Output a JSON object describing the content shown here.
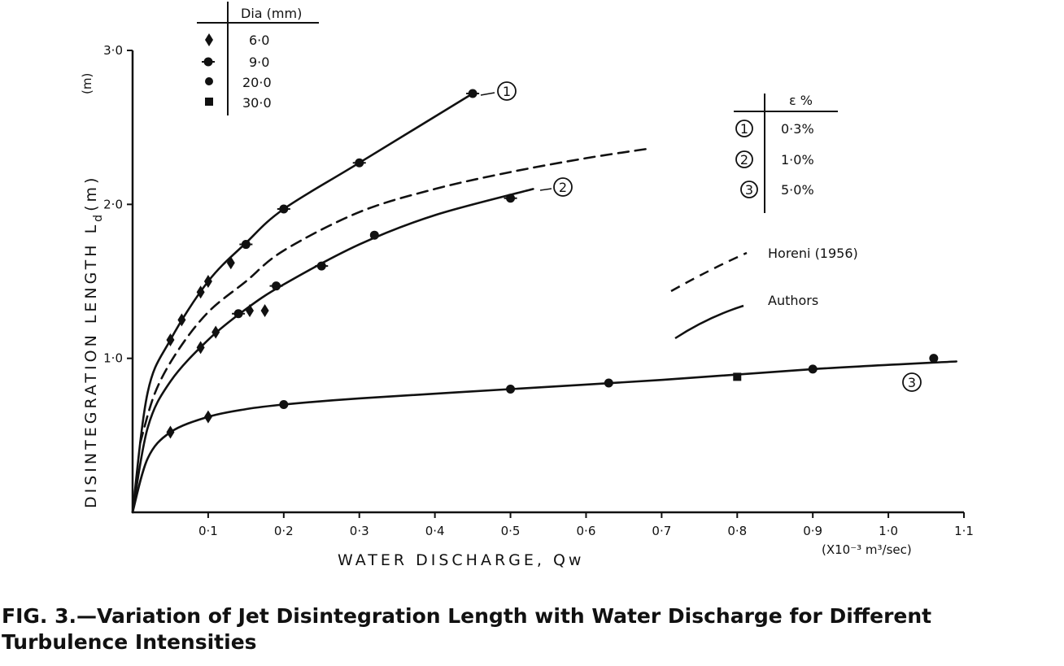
{
  "chart_data": {
    "type": "scatter",
    "xlabel": "WATER DISCHARGE, Qw",
    "x_unit": "(X10⁻³ m³/sec)",
    "ylabel": "DISINTEGRATION LENGTH L",
    "ylabel_subscript": "d",
    "ylabel_unit": "(m)",
    "y_axis_unit_top": "(m)",
    "xlim": [
      0,
      1.1
    ],
    "ylim": [
      0,
      3.0
    ],
    "x_ticks": [
      {
        "value": 0.1,
        "label": "0·1"
      },
      {
        "value": 0.2,
        "label": "0·2"
      },
      {
        "value": 0.3,
        "label": "0·3"
      },
      {
        "value": 0.4,
        "label": "0·4"
      },
      {
        "value": 0.5,
        "label": "0·5"
      },
      {
        "value": 0.6,
        "label": "0·6"
      },
      {
        "value": 0.7,
        "label": "0·7"
      },
      {
        "value": 0.8,
        "label": "0·8"
      },
      {
        "value": 0.9,
        "label": "0·9"
      },
      {
        "value": 1.0,
        "label": "1·0"
      },
      {
        "value": 1.1,
        "label": "1·1"
      }
    ],
    "y_ticks": [
      {
        "value": 1.0,
        "label": "1·0"
      },
      {
        "value": 2.0,
        "label": "2·0"
      },
      {
        "value": 3.0,
        "label": "3·0"
      }
    ],
    "dia_legend": {
      "header": "Dia (mm)",
      "entries": [
        {
          "label": "6·0",
          "marker": "diamond"
        },
        {
          "label": "9·0",
          "marker": "ticked-circle"
        },
        {
          "label": "20·0",
          "marker": "circle"
        },
        {
          "label": "30·0",
          "marker": "square"
        }
      ]
    },
    "epsilon_legend": {
      "header": "ε %",
      "entries": [
        {
          "id": "1",
          "label": "0·3%"
        },
        {
          "id": "2",
          "label": "1·0%"
        },
        {
          "id": "3",
          "label": "5·0%"
        }
      ]
    },
    "style_legend": [
      {
        "label": "Horeni (1956)",
        "style": "dashed"
      },
      {
        "label": "Authors",
        "style": "solid"
      }
    ],
    "curves": [
      {
        "id": "1",
        "style": "solid",
        "points": [
          [
            0,
            0
          ],
          [
            0.02,
            0.78
          ],
          [
            0.05,
            1.12
          ],
          [
            0.1,
            1.5
          ],
          [
            0.15,
            1.75
          ],
          [
            0.2,
            1.97
          ],
          [
            0.3,
            2.27
          ],
          [
            0.45,
            2.72
          ]
        ]
      },
      {
        "id": "2",
        "style": "solid",
        "points": [
          [
            0,
            0
          ],
          [
            0.02,
            0.55
          ],
          [
            0.05,
            0.85
          ],
          [
            0.1,
            1.12
          ],
          [
            0.15,
            1.32
          ],
          [
            0.2,
            1.48
          ],
          [
            0.3,
            1.74
          ],
          [
            0.4,
            1.93
          ],
          [
            0.53,
            2.1
          ]
        ]
      },
      {
        "id": "3",
        "style": "solid",
        "points": [
          [
            0,
            0
          ],
          [
            0.02,
            0.35
          ],
          [
            0.05,
            0.52
          ],
          [
            0.1,
            0.62
          ],
          [
            0.15,
            0.67
          ],
          [
            0.2,
            0.7
          ],
          [
            0.3,
            0.74
          ],
          [
            0.5,
            0.8
          ],
          [
            0.7,
            0.86
          ],
          [
            0.9,
            0.93
          ],
          [
            1.09,
            0.98
          ]
        ]
      },
      {
        "id": "Horeni",
        "style": "dashed",
        "points": [
          [
            0.01,
            0.45
          ],
          [
            0.03,
            0.78
          ],
          [
            0.06,
            1.05
          ],
          [
            0.1,
            1.3
          ],
          [
            0.15,
            1.5
          ],
          [
            0.2,
            1.7
          ],
          [
            0.3,
            1.95
          ],
          [
            0.4,
            2.1
          ],
          [
            0.5,
            2.21
          ],
          [
            0.6,
            2.3
          ],
          [
            0.68,
            2.36
          ]
        ]
      }
    ],
    "points": [
      {
        "x": 0.05,
        "y": 1.12,
        "marker": "diamond"
      },
      {
        "x": 0.065,
        "y": 1.25,
        "marker": "diamond"
      },
      {
        "x": 0.09,
        "y": 1.43,
        "marker": "diamond"
      },
      {
        "x": 0.1,
        "y": 1.5,
        "marker": "diamond"
      },
      {
        "x": 0.13,
        "y": 1.62,
        "marker": "diamond"
      },
      {
        "x": 0.15,
        "y": 1.74,
        "marker": "ticked-circle"
      },
      {
        "x": 0.2,
        "y": 1.97,
        "marker": "ticked-circle"
      },
      {
        "x": 0.3,
        "y": 2.27,
        "marker": "ticked-circle"
      },
      {
        "x": 0.45,
        "y": 2.72,
        "marker": "ticked-circle"
      },
      {
        "x": 0.09,
        "y": 1.07,
        "marker": "diamond"
      },
      {
        "x": 0.11,
        "y": 1.17,
        "marker": "diamond"
      },
      {
        "x": 0.14,
        "y": 1.29,
        "marker": "ticked-circle"
      },
      {
        "x": 0.155,
        "y": 1.31,
        "marker": "diamond"
      },
      {
        "x": 0.175,
        "y": 1.31,
        "marker": "diamond"
      },
      {
        "x": 0.19,
        "y": 1.47,
        "marker": "ticked-circle"
      },
      {
        "x": 0.25,
        "y": 1.6,
        "marker": "ticked-circle"
      },
      {
        "x": 0.32,
        "y": 1.8,
        "marker": "circle"
      },
      {
        "x": 0.5,
        "y": 2.04,
        "marker": "ticked-circle"
      },
      {
        "x": 0.05,
        "y": 0.52,
        "marker": "diamond"
      },
      {
        "x": 0.1,
        "y": 0.62,
        "marker": "diamond"
      },
      {
        "x": 0.2,
        "y": 0.7,
        "marker": "circle"
      },
      {
        "x": 0.5,
        "y": 0.8,
        "marker": "circle"
      },
      {
        "x": 0.63,
        "y": 0.84,
        "marker": "circle"
      },
      {
        "x": 0.8,
        "y": 0.88,
        "marker": "square"
      },
      {
        "x": 0.9,
        "y": 0.93,
        "marker": "circle"
      },
      {
        "x": 1.06,
        "y": 1.0,
        "marker": "circle"
      }
    ]
  },
  "caption": {
    "line1": "FIG. 3.—Variation of Jet Disintegration Length with Water Discharge for Different",
    "line2": "Turbulence Intensities"
  }
}
